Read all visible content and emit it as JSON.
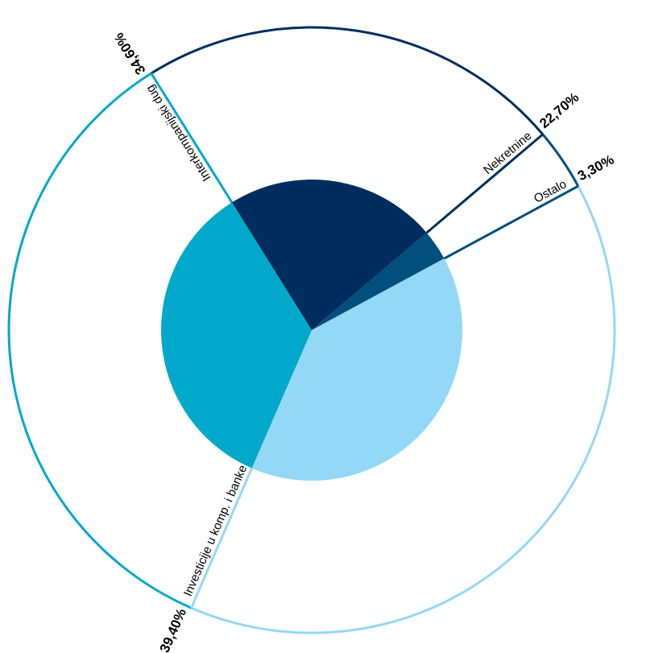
{
  "chart_data": {
    "type": "pie",
    "title": "",
    "slices": [
      {
        "label": "Nekretnine",
        "percent_label": "22,70%",
        "value": 22.7,
        "color": "#002d5d"
      },
      {
        "label": "Ostalo",
        "percent_label": "3,30%",
        "value": 3.3,
        "color": "#004f7c"
      },
      {
        "label": "Investicije u komp. i banke",
        "percent_label": "39,40%",
        "value": 39.4,
        "color": "#93d8f6"
      },
      {
        "label": "Interkompanijski dug",
        "percent_label": "34,60%",
        "value": 34.6,
        "color": "#00a8cb"
      }
    ],
    "start_angle_deg": -32,
    "direction": "clockwise"
  }
}
